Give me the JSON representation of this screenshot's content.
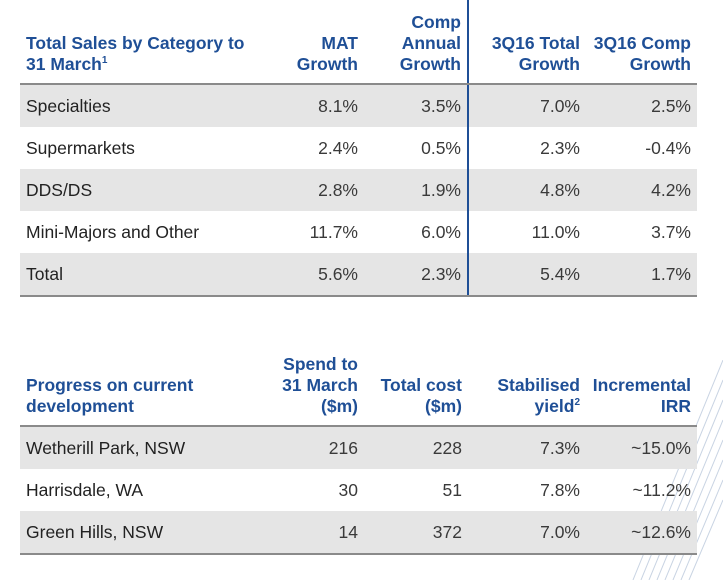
{
  "sales_table": {
    "headers": [
      {
        "text": "Total Sales by Category to 31 March",
        "sup": "1"
      },
      {
        "text": "MAT Growth",
        "sup": ""
      },
      {
        "text": "Comp Annual Growth",
        "sup": ""
      },
      {
        "text": "3Q16 Total Growth",
        "sup": ""
      },
      {
        "text": "3Q16 Comp Growth",
        "sup": ""
      }
    ],
    "rows": [
      [
        "Specialties",
        "8.1%",
        "3.5%",
        "7.0%",
        "2.5%"
      ],
      [
        "Supermarkets",
        "2.4%",
        "0.5%",
        "2.3%",
        "-0.4%"
      ],
      [
        "DDS/DS",
        "2.8%",
        "1.9%",
        "4.8%",
        "4.2%"
      ],
      [
        "Mini-Majors and Other",
        "11.7%",
        "6.0%",
        "11.0%",
        "3.7%"
      ],
      [
        "Total",
        "5.6%",
        "2.3%",
        "5.4%",
        "1.7%"
      ]
    ]
  },
  "development_table": {
    "headers": [
      {
        "text": "Progress on current development",
        "sup": ""
      },
      {
        "text": "Spend to 31 March ($m)",
        "sup": ""
      },
      {
        "text": "Total cost ($m)",
        "sup": ""
      },
      {
        "text": "Stabilised yield",
        "sup": "2"
      },
      {
        "text": "Incremental IRR",
        "sup": ""
      }
    ],
    "rows": [
      [
        "Wetherill Park, NSW",
        "216",
        "228",
        "7.3%",
        "~15.0%"
      ],
      [
        "Harrisdale, WA",
        "30",
        "51",
        "7.8%",
        "~11.2%"
      ],
      [
        "Green Hills, NSW",
        "14",
        "372",
        "7.0%",
        "~12.6%"
      ]
    ]
  },
  "colors": {
    "header_text": "#1f4f96",
    "row_shade": "#e5e5e5",
    "divider": "#1f4f96"
  }
}
